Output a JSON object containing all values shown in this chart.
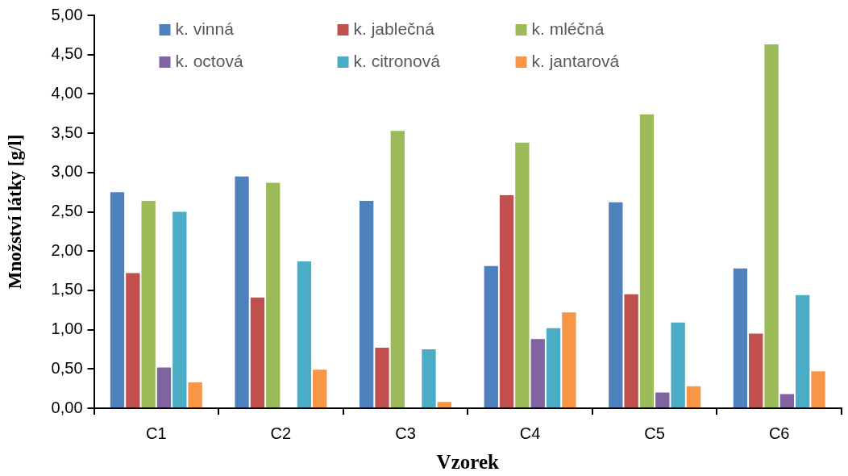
{
  "chart_data": {
    "type": "bar",
    "xlabel": "Vzorek",
    "ylabel": "Množství látky [g/l]",
    "categories": [
      "C1",
      "C2",
      "C3",
      "C4",
      "C5",
      "C6"
    ],
    "series": [
      {
        "name": "k. vinná",
        "color": "#4f81bd",
        "values": [
          2.76,
          2.96,
          2.65,
          1.82,
          2.63,
          1.79
        ]
      },
      {
        "name": "k. jablečná",
        "color": "#c0504d",
        "values": [
          1.73,
          1.42,
          0.78,
          2.72,
          1.46,
          0.96
        ]
      },
      {
        "name": "k. mléčná",
        "color": "#9bbb59",
        "values": [
          2.65,
          2.88,
          3.54,
          3.39,
          3.75,
          4.64
        ]
      },
      {
        "name": "k. octová",
        "color": "#8064a2",
        "values": [
          0.53,
          null,
          null,
          0.89,
          0.21,
          0.19
        ]
      },
      {
        "name": "k. citronová",
        "color": "#4bacc6",
        "values": [
          2.51,
          1.88,
          0.76,
          1.03,
          1.1,
          1.45
        ]
      },
      {
        "name": "k. jantarová",
        "color": "#f79646",
        "values": [
          0.34,
          0.5,
          0.09,
          1.23,
          0.29,
          0.48
        ]
      }
    ],
    "ylim": [
      0,
      5
    ],
    "yticks": [
      {
        "value": 0,
        "label": "0,00"
      },
      {
        "value": 0.5,
        "label": "0,50"
      },
      {
        "value": 1,
        "label": "1,00"
      },
      {
        "value": 1.5,
        "label": "1,50"
      },
      {
        "value": 2,
        "label": "2,00"
      },
      {
        "value": 2.5,
        "label": "2,50"
      },
      {
        "value": 3,
        "label": "3,00"
      },
      {
        "value": 3.5,
        "label": "3,50"
      },
      {
        "value": 4,
        "label": "4,00"
      },
      {
        "value": 4.5,
        "label": "4,50"
      },
      {
        "value": 5,
        "label": "5,00"
      }
    ],
    "grid": false,
    "legend": "top"
  }
}
